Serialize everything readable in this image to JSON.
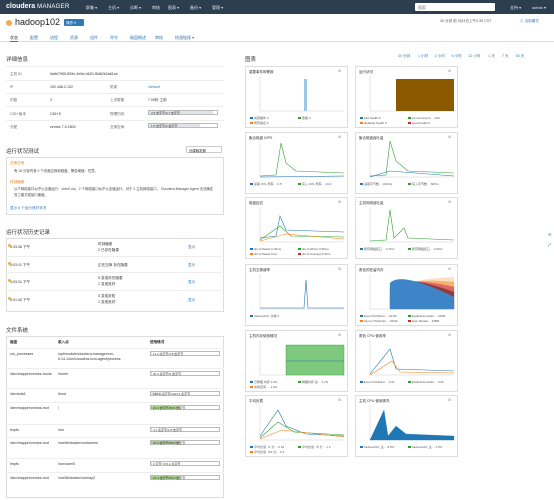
{
  "nav": {
    "brand_a": "cloudera",
    "brand_b": "MANAGER",
    "menu": [
      "群集 ▾",
      "主机 ▾",
      "诊断 ▾",
      "审核",
      "图表 ▾",
      "备份 ▾",
      "管理 ▾"
    ],
    "search_placeholder": "搜索",
    "support": "支持 ▾",
    "user": "admin ▾"
  },
  "host": {
    "name": "hadoop102",
    "action_button": "操作 ▾",
    "time_range": "30 分钟 前  5月4日上午2:39 CST",
    "mode": "⊙ 当前模式"
  },
  "tabs": [
    "状态",
    "配置",
    "进程",
    "资源",
    "组件",
    "命令",
    "磁盘概述",
    "审核",
    "快速链接 ▾"
  ],
  "details": {
    "title": "详细信息",
    "rows": [
      {
        "k": "主机 ID",
        "v": "0a6e7955-509e-4e5d-b620-f5d62b2a61ca"
      },
      {
        "k": "IP",
        "v": "192.168.2.102",
        "k2": "机架",
        "v2": "/default"
      },
      {
        "k": "内核",
        "v": "2",
        "k2": "上次群集",
        "v2": "7.00秒 之前"
      },
      {
        "k": "CDH 版本",
        "v": "CDH 5",
        "k2": "物理内存",
        "v2": "3.5 GB 中 / 3.7 GB"
      },
      {
        "k": "分配",
        "v": "centos 7.5.1804",
        "k2": "交换空间",
        "v2": "1.5 GB 中 / 2 GB"
      }
    ],
    "mem_bar": {
      "label": "3.5 吉字节/3.7 吉字节",
      "fill": 0.94
    },
    "swap_bar": {
      "label": "1.5 吉字节/2 吉字节",
      "fill": 0.75
    }
  },
  "health": {
    "title": "运行状况测试",
    "button": "创建触发器",
    "items": [
      {
        "title": "交换空间",
        "text": "有 15 分钟内有 0 个页面交换到磁盘。警告阈值：任意。"
      },
      {
        "title": "时钟偏差",
        "text": "以下网络接口似乎以全速运行：virbr0-nic。2 个网络接口似乎以全速运行。对于 2 主机网络接口， Cloudera Manager Agent 无法确定双工模式或接口速度。"
      }
    ],
    "more": "显示 6 个运行良好状况"
  },
  "history": {
    "title": "运行状况历史记录",
    "items": [
      {
        "time": "5:33:36 下午",
        "a": "时钟偏差",
        "b": "2 已存在隐患",
        "link": "显示"
      },
      {
        "time": "5:03:31 下午",
        "a": "正在交换 存在隐患",
        "b": "",
        "link": "显示"
      },
      {
        "time": "5:03:31 下午",
        "a": "5 变成存在隐患",
        "b": "1 变成良好",
        "link": "显示"
      },
      {
        "time": "5:01:40 下午",
        "a": "5 变成未知",
        "b": "1 变成良好",
        "link": "显示"
      }
    ]
  },
  "fs": {
    "title": "文件系统",
    "headers": [
      "磁盘",
      "装入点",
      "使用情况"
    ],
    "rows": [
      {
        "disk": "cm_processes",
        "mount": "/opt/module/cloudera-manager/cm-5.14.1/run/cloudera-scm-agent/process",
        "usage": "11.3 兆字节/1.8 吉字节",
        "fill": 0.01
      },
      {
        "disk": "/dev/mapper/centos-home",
        "mount": "/home",
        "usage": "32.4 兆字节/9 吉字节",
        "fill": 0.01
      },
      {
        "disk": "/dev/sda1",
        "mount": "/boot",
        "usage": "156.9 兆字节/1014.5 兆字节",
        "fill": 0.15
      },
      {
        "disk": "/dev/mapper/centos-root",
        "mount": "/",
        "usage": "21.4 吉字节/50.0 吉字节",
        "fill": 0.43
      },
      {
        "disk": "tmpfs",
        "mount": "/run",
        "usage": "4.1 兆字节/1.8 吉字节",
        "fill": 0.01
      },
      {
        "disk": "/dev/mapper/centos-root",
        "mount": "/var/lib/docker/containers",
        "usage": "21.4 吉字节/50.0 吉字节",
        "fill": 0.43
      },
      {
        "disk": "tmpfs",
        "mount": "/run/user/0",
        "usage": "0 字节/ 374.2 兆字节",
        "fill": 0.0
      },
      {
        "disk": "/dev/mapper/centos-root",
        "mount": "/var/lib/docker/overlay2",
        "usage": "21.4 吉字节/50.0 吉字节",
        "fill": 0.43
      }
    ]
  },
  "charts_panel": {
    "title": "图表",
    "ranges": [
      "30 分钟",
      "1 小时",
      "2 小时",
      "6 小时",
      "12 小时",
      "1 天",
      "7 天",
      "30 天"
    ],
    "charts": [
      {
        "title": "重要事件和警报",
        "legend": [
          "关键事件 0",
          "警报 0",
          "所有信息 0"
        ]
      },
      {
        "title": "运行状况",
        "legend": [
          "bad health 0",
          "concerning he… 100",
          "disabled health 0",
          "good health 0"
        ]
      },
      {
        "title": "聚合磁盘 IOPS",
        "legend": [
          "读取 IOS, 所有… 0.5",
          "写入 IOS, 所有… 19.4"
        ]
      },
      {
        "title": "聚合磁盘吞吐量",
        "legend": [
          "读取字节数…  344K/s",
          "写入字节数…  66K/s"
        ]
      },
      {
        "title": "磁盘延迟",
        "legend": [
          "dm-0 Reads  0.18ms",
          "dm-0 Writes  0.55ms",
          "dm-0 Reads  0ms",
          "dm-0 Overlays  0.5ms"
        ]
      },
      {
        "title": "主机网络吞吐量",
        "legend": [
          "所有网络接口… 2.7K/s",
          "所有网络接口… 0.3K/s"
        ]
      },
      {
        "title": "主机交换速率",
        "legend": [
          "hadoop102, 交换  0"
        ]
      },
      {
        "title": "角色的驻留内存",
        "legend": [
          "Event Publisher… 217M",
          "DataNode (hado… 249M",
          "Server Publisher… 261M",
          "Hive Metast… 338M"
        ]
      },
      {
        "title": "主机内存使用情况",
        "legend": [
          "已物理 内存  1.6G",
          "物理内存 总… 3.7G",
          "交换空间 … 1.6G"
        ]
      },
      {
        "title": "角色 CPU 使用率",
        "legend": [
          "Event Publisher… 0.21",
          "DataNode (hado… 0.20"
        ]
      },
      {
        "title": "平均负载",
        "legend": [
          "平均负载（1 分… 0.18",
          "平均负载（5 分… 1.2",
          "平均负载（15 分… 0.4"
        ]
      },
      {
        "title": "主机 CPU 使用情况",
        "legend": [
          "hadoop102, 主… 8.5%",
          "hadoop102, 主… 1.5%"
        ]
      }
    ]
  },
  "side_actions": [
    "☰",
    "⤢"
  ],
  "colors": {
    "nav_bg": "#2c3e50",
    "accent": "#2f79b9",
    "warn": "#f0ad4e",
    "orange": "#e67e22",
    "brown": "#8b5a00",
    "green": "#2ca02c",
    "blue": "#1f77b4"
  }
}
